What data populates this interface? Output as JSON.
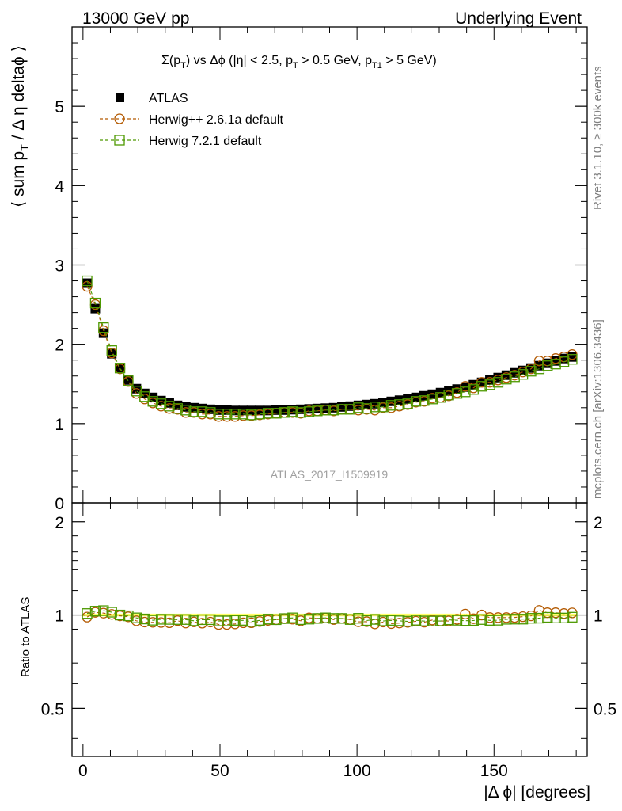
{
  "header": {
    "left": "13000 GeV pp",
    "right": "Underlying Event"
  },
  "side_labels": {
    "rivet": "Rivet 3.1.10, ≥ 300k events",
    "mcplots": "mcplots.cern.ch [arXiv:1306.3436]"
  },
  "watermark": "ATLAS_2017_I1509919",
  "chart_data": [
    {
      "type": "scatter",
      "title_parts": {
        "sigma": "Σ(p",
        "sub_T1": "T",
        "mid": ") vs Δϕ (|η| < 2.5, p",
        "sub_T2": "T",
        "mid2": " > 0.5 GeV, p",
        "sub_T3": "T1",
        "end": " > 5 GeV)"
      },
      "ylabel_parts": {
        "a": "⟨ sum p",
        "sub": "T",
        "b": " / Δ η deltaϕ ⟩"
      },
      "xlim": [
        -4,
        184
      ],
      "ylim": [
        0,
        6
      ],
      "yticks": [
        0,
        1,
        2,
        3,
        4,
        5
      ],
      "ytick_labels": [
        "0",
        "1",
        "2",
        "3",
        "4",
        "5"
      ],
      "legend_position": "top-left",
      "colors": {
        "data": "#000000",
        "herwig_pp": "#b35900",
        "herwig7": "#4d9900"
      },
      "series": [
        {
          "name": "ATLAS",
          "x": [
            1.5,
            4.5,
            7.5,
            10.5,
            13.5,
            16.5,
            19.5,
            22.5,
            25.5,
            28.5,
            31.5,
            34.5,
            37.5,
            40.5,
            43.5,
            46.5,
            49.5,
            52.5,
            55.5,
            58.5,
            61.5,
            64.5,
            67.5,
            70.5,
            73.5,
            76.5,
            79.5,
            82.5,
            85.5,
            88.5,
            91.5,
            94.5,
            97.5,
            100.5,
            103.5,
            106.5,
            109.5,
            112.5,
            115.5,
            118.5,
            121.5,
            124.5,
            127.5,
            130.5,
            133.5,
            136.5,
            139.5,
            142.5,
            145.5,
            148.5,
            151.5,
            154.5,
            157.5,
            160.5,
            163.5,
            166.5,
            169.5,
            172.5,
            175.5,
            178.5
          ],
          "y": [
            2.77,
            2.45,
            2.14,
            1.88,
            1.7,
            1.55,
            1.44,
            1.38,
            1.33,
            1.29,
            1.26,
            1.23,
            1.21,
            1.2,
            1.19,
            1.18,
            1.17,
            1.17,
            1.165,
            1.165,
            1.165,
            1.165,
            1.165,
            1.17,
            1.17,
            1.175,
            1.18,
            1.185,
            1.19,
            1.195,
            1.2,
            1.21,
            1.22,
            1.23,
            1.24,
            1.25,
            1.265,
            1.28,
            1.295,
            1.31,
            1.33,
            1.35,
            1.37,
            1.39,
            1.41,
            1.435,
            1.46,
            1.49,
            1.52,
            1.55,
            1.58,
            1.61,
            1.64,
            1.67,
            1.7,
            1.73,
            1.76,
            1.79,
            1.82,
            1.84
          ]
        },
        {
          "name": "Herwig++ 2.6.1a default",
          "marker": "circle",
          "x": [
            1.5,
            4.5,
            7.5,
            10.5,
            13.5,
            16.5,
            19.5,
            22.5,
            25.5,
            28.5,
            31.5,
            34.5,
            37.5,
            40.5,
            43.5,
            46.5,
            49.5,
            52.5,
            55.5,
            58.5,
            61.5,
            64.5,
            67.5,
            70.5,
            73.5,
            76.5,
            79.5,
            82.5,
            85.5,
            88.5,
            91.5,
            94.5,
            97.5,
            100.5,
            103.5,
            106.5,
            109.5,
            112.5,
            115.5,
            118.5,
            121.5,
            124.5,
            127.5,
            130.5,
            133.5,
            136.5,
            139.5,
            142.5,
            145.5,
            148.5,
            151.5,
            154.5,
            157.5,
            160.5,
            163.5,
            166.5,
            169.5,
            172.5,
            175.5,
            178.5
          ],
          "y": [
            2.73,
            2.5,
            2.17,
            1.89,
            1.69,
            1.53,
            1.38,
            1.31,
            1.26,
            1.22,
            1.19,
            1.18,
            1.14,
            1.14,
            1.12,
            1.12,
            1.09,
            1.09,
            1.09,
            1.1,
            1.1,
            1.11,
            1.12,
            1.13,
            1.14,
            1.14,
            1.13,
            1.16,
            1.16,
            1.17,
            1.16,
            1.18,
            1.18,
            1.17,
            1.18,
            1.17,
            1.2,
            1.2,
            1.22,
            1.24,
            1.27,
            1.28,
            1.32,
            1.33,
            1.35,
            1.39,
            1.47,
            1.45,
            1.52,
            1.52,
            1.55,
            1.58,
            1.61,
            1.65,
            1.69,
            1.79,
            1.79,
            1.82,
            1.84,
            1.87
          ]
        },
        {
          "name": "Herwig 7.2.1 default",
          "marker": "square",
          "x": [
            1.5,
            4.5,
            7.5,
            10.5,
            13.5,
            16.5,
            19.5,
            22.5,
            25.5,
            28.5,
            31.5,
            34.5,
            37.5,
            40.5,
            43.5,
            46.5,
            49.5,
            52.5,
            55.5,
            58.5,
            61.5,
            64.5,
            67.5,
            70.5,
            73.5,
            76.5,
            79.5,
            82.5,
            85.5,
            88.5,
            91.5,
            94.5,
            97.5,
            100.5,
            103.5,
            106.5,
            109.5,
            112.5,
            115.5,
            118.5,
            121.5,
            124.5,
            127.5,
            130.5,
            133.5,
            136.5,
            139.5,
            142.5,
            145.5,
            148.5,
            151.5,
            154.5,
            157.5,
            160.5,
            163.5,
            166.5,
            169.5,
            172.5,
            175.5,
            178.5
          ],
          "y": [
            2.8,
            2.52,
            2.21,
            1.92,
            1.7,
            1.54,
            1.41,
            1.34,
            1.28,
            1.25,
            1.22,
            1.19,
            1.17,
            1.15,
            1.15,
            1.14,
            1.12,
            1.12,
            1.12,
            1.12,
            1.11,
            1.12,
            1.13,
            1.13,
            1.14,
            1.15,
            1.14,
            1.15,
            1.16,
            1.17,
            1.17,
            1.18,
            1.18,
            1.2,
            1.19,
            1.21,
            1.21,
            1.23,
            1.24,
            1.25,
            1.28,
            1.29,
            1.31,
            1.33,
            1.36,
            1.38,
            1.4,
            1.43,
            1.47,
            1.49,
            1.52,
            1.56,
            1.59,
            1.62,
            1.66,
            1.69,
            1.73,
            1.75,
            1.78,
            1.81
          ]
        }
      ]
    },
    {
      "type": "scatter",
      "ylabel": "Ratio to ATLAS",
      "xlabel": "|Δ ϕ| [degrees]",
      "xlim": [
        -4,
        184
      ],
      "ylim": [
        0.35,
        2.3
      ],
      "xticks": [
        0,
        50,
        100,
        150
      ],
      "xtick_labels": [
        "0",
        "50",
        "100",
        "150"
      ],
      "yticks": [
        0.5,
        1,
        2
      ],
      "ytick_labels": [
        "0.5",
        "1",
        "2"
      ],
      "band": {
        "color": "#ffff66",
        "ylim": [
          0.99,
          1.01
        ]
      },
      "series": [
        {
          "name": "Herwig++ 2.6.1a default",
          "marker": "circle",
          "y": [
            0.985,
            1.02,
            1.014,
            1.005,
            0.994,
            0.987,
            0.958,
            0.949,
            0.947,
            0.946,
            0.944,
            0.959,
            0.942,
            0.95,
            0.941,
            0.949,
            0.932,
            0.932,
            0.936,
            0.944,
            0.944,
            0.953,
            0.961,
            0.966,
            0.974,
            0.97,
            0.958,
            0.979,
            0.975,
            0.979,
            0.967,
            0.975,
            0.967,
            0.951,
            0.952,
            0.936,
            0.949,
            0.938,
            0.942,
            0.947,
            0.955,
            0.948,
            0.964,
            0.957,
            0.957,
            0.969,
            1.007,
            0.973,
            1.0,
            0.981,
            0.981,
            0.981,
            0.982,
            0.988,
            0.994,
            1.035,
            1.017,
            1.017,
            1.011,
            1.016
          ]
        },
        {
          "name": "Herwig 7.2.1 default",
          "marker": "square",
          "y": [
            1.011,
            1.029,
            1.033,
            1.021,
            1.0,
            0.994,
            0.979,
            0.971,
            0.962,
            0.969,
            0.968,
            0.967,
            0.967,
            0.958,
            0.966,
            0.966,
            0.957,
            0.957,
            0.961,
            0.961,
            0.953,
            0.961,
            0.97,
            0.966,
            0.974,
            0.979,
            0.966,
            0.97,
            0.975,
            0.979,
            0.975,
            0.975,
            0.967,
            0.976,
            0.96,
            0.968,
            0.957,
            0.961,
            0.958,
            0.954,
            0.962,
            0.956,
            0.956,
            0.957,
            0.965,
            0.962,
            0.959,
            0.96,
            0.967,
            0.961,
            0.962,
            0.969,
            0.97,
            0.97,
            0.976,
            0.977,
            0.983,
            0.978,
            0.978,
            0.984
          ]
        }
      ]
    }
  ]
}
